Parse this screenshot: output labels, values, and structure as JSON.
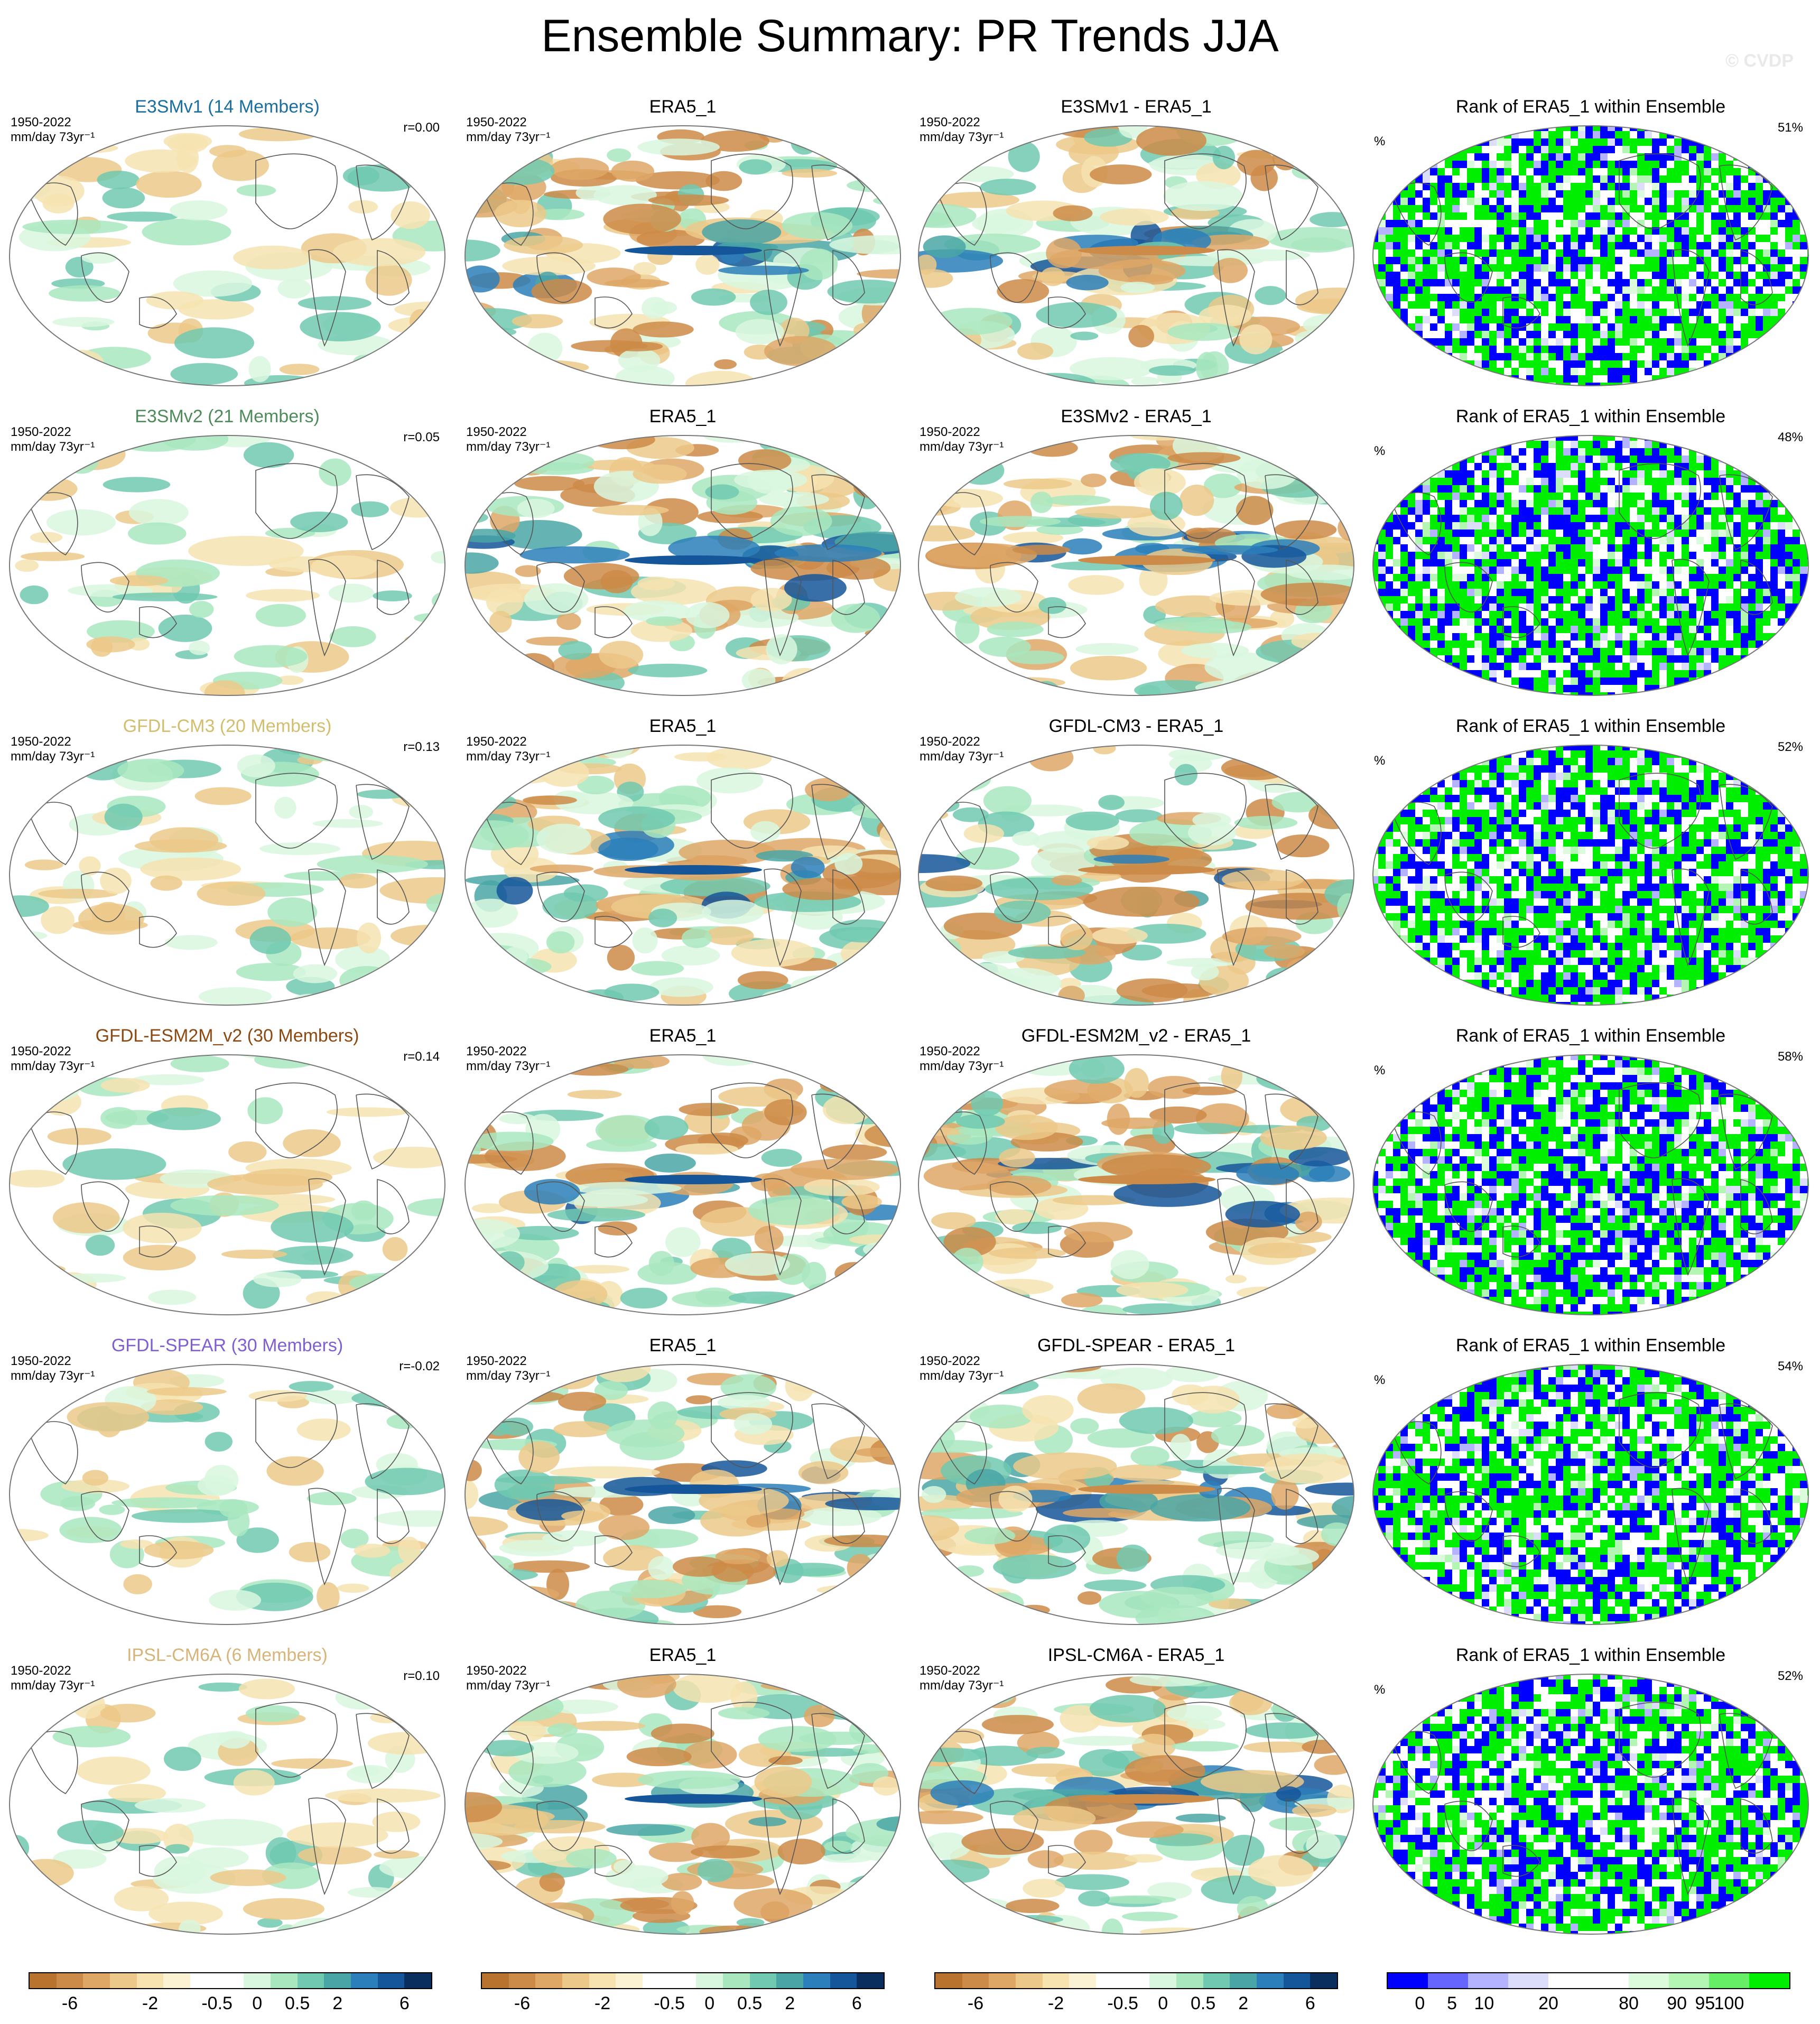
{
  "page": {
    "title": "Ensemble Summary: PR Trends JJA",
    "watermark": "© CVDP"
  },
  "colors": {
    "trend_scale": [
      "#b8742f",
      "#cc8b48",
      "#dea766",
      "#ecc98a",
      "#f6e3b0",
      "#fbf2d4",
      "#ffffff",
      "#ffffff",
      "#d9f7df",
      "#a9e8bf",
      "#70c9b0",
      "#4aa6a6",
      "#2b7fba",
      "#15569a",
      "#0a2f5e"
    ],
    "rank_scale": [
      "#0000ff",
      "#6666ff",
      "#b3b3ff",
      "#dcdcfb",
      "#ffffff",
      "#ffffff",
      "#dcfadc",
      "#b3f5b3",
      "#66ee66",
      "#00ee00"
    ],
    "model_colors": {
      "E3SMv1": "#1b6ea0",
      "E3SMv2": "#4d8c5a",
      "GFDL-CM3": "#d2be6e",
      "GFDL-ESM2M_v2": "#8c4a12",
      "GFDL-SPEAR": "#8060d0",
      "IPSL-CM6A": "#d6b47a"
    }
  },
  "rows": [
    {
      "model_label": "E3SMv1 (14 Members)",
      "model_color": "#1b6ea0",
      "years": "1950-2022",
      "units": "mm/day 73yr⁻¹",
      "r": "r=0.00",
      "obs_title": "ERA5_1",
      "diff_title": "E3SMv1 - ERA5_1",
      "rank_title": "Rank of ERA5_1 within Ensemble",
      "pct_symbol": "%",
      "rank_pct": "51%"
    },
    {
      "model_label": "E3SMv2 (21 Members)",
      "model_color": "#4d8c5a",
      "years": "1950-2022",
      "units": "mm/day 73yr⁻¹",
      "r": "r=0.05",
      "obs_title": "ERA5_1",
      "diff_title": "E3SMv2 - ERA5_1",
      "rank_title": "Rank of ERA5_1 within Ensemble",
      "pct_symbol": "%",
      "rank_pct": "48%"
    },
    {
      "model_label": "GFDL-CM3 (20 Members)",
      "model_color": "#d2be6e",
      "years": "1950-2022",
      "units": "mm/day 73yr⁻¹",
      "r": "r=0.13",
      "obs_title": "ERA5_1",
      "diff_title": "GFDL-CM3 - ERA5_1",
      "rank_title": "Rank of ERA5_1 within Ensemble",
      "pct_symbol": "%",
      "rank_pct": "52%"
    },
    {
      "model_label": "GFDL-ESM2M_v2 (30 Members)",
      "model_color": "#8c4a12",
      "years": "1950-2022",
      "units": "mm/day 73yr⁻¹",
      "r": "r=0.14",
      "obs_title": "ERA5_1",
      "diff_title": "GFDL-ESM2M_v2 - ERA5_1",
      "rank_title": "Rank of ERA5_1 within Ensemble",
      "pct_symbol": "%",
      "rank_pct": "58%"
    },
    {
      "model_label": "GFDL-SPEAR (30 Members)",
      "model_color": "#8060d0",
      "years": "1950-2022",
      "units": "mm/day 73yr⁻¹",
      "r": "r=-0.02",
      "obs_title": "ERA5_1",
      "diff_title": "GFDL-SPEAR - ERA5_1",
      "rank_title": "Rank of ERA5_1 within Ensemble",
      "pct_symbol": "%",
      "rank_pct": "54%"
    },
    {
      "model_label": "IPSL-CM6A (6 Members)",
      "model_color": "#d6b47a",
      "years": "1950-2022",
      "units": "mm/day 73yr⁻¹",
      "r": "r=0.10",
      "obs_title": "ERA5_1",
      "diff_title": "IPSL-CM6A - ERA5_1",
      "rank_title": "Rank of ERA5_1 within Ensemble",
      "pct_symbol": "%",
      "rank_pct": "52%"
    }
  ],
  "colorbars": {
    "trend_labels": [
      "-6",
      "-2",
      "-0.5",
      "0",
      "0.5",
      "2",
      "6"
    ],
    "rank_labels": [
      "0",
      "5",
      "10",
      "20",
      "80",
      "90",
      "95",
      "100"
    ]
  }
}
